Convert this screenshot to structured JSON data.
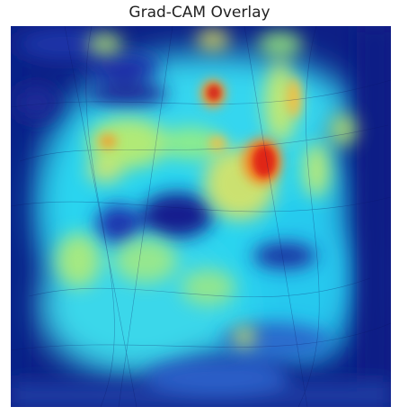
{
  "figure": {
    "title": "Grad-CAM Overlay"
  },
  "heatmap": {
    "colormap": "jet",
    "colors": {
      "low": "#0a1880",
      "mid": "#22d8f0",
      "high": "#f5f05a",
      "peak": "#e5301a"
    }
  }
}
